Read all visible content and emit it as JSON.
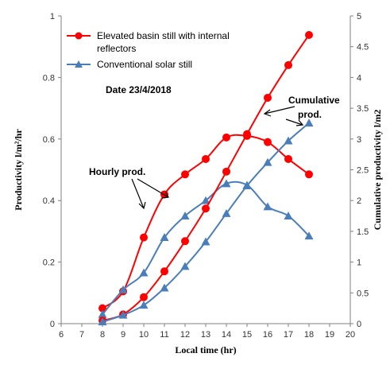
{
  "chart_data": {
    "type": "line",
    "xlabel": "Local time (hr)",
    "ylabel_left": "Productivity l/m²/hr",
    "ylabel_right": "Cumulative productivity l/m2",
    "xlim": [
      6,
      20
    ],
    "ylim_left": [
      0,
      1
    ],
    "ylim_right": [
      0,
      5
    ],
    "x_ticks": [
      "6",
      "7",
      "8",
      "9",
      "10",
      "11",
      "12",
      "13",
      "14",
      "15",
      "16",
      "17",
      "18",
      "19",
      "20"
    ],
    "y_left_ticks": [
      "0",
      "0.2",
      "0.4",
      "0.6",
      "0.8",
      "1"
    ],
    "y_right_ticks": [
      "0",
      "0.5",
      "1",
      "1.5",
      "2",
      "2.5",
      "3",
      "3.5",
      "4",
      "4.5",
      "5"
    ],
    "grid": false,
    "legend_placement": "top-left",
    "legend": [
      {
        "line1": "Elevated basin still with internal",
        "line2": "reflectors",
        "color": "#ff0000",
        "marker": "circle"
      },
      {
        "line1": "Conventional solar still",
        "line2": "",
        "color": "#4a7ebb",
        "marker": "triangle"
      }
    ],
    "annotations": {
      "date": "Date 23/4/2018",
      "hourly": "Hourly prod.",
      "cumulative_line1": "Cumulative",
      "cumulative_line2": "prod."
    },
    "series": [
      {
        "key": "elev_hourly",
        "axis": "left",
        "color": "#ff0000",
        "marker": "circle",
        "x": [
          8,
          9,
          10,
          11,
          12,
          13,
          14,
          15,
          16,
          17,
          18
        ],
        "y": [
          0.05,
          0.105,
          0.28,
          0.42,
          0.485,
          0.535,
          0.605,
          0.61,
          0.59,
          0.535,
          0.485
        ]
      },
      {
        "key": "conv_hourly",
        "axis": "left",
        "color": "#4a7ebb",
        "marker": "triangle",
        "x": [
          8,
          9,
          10,
          11,
          12,
          13,
          14,
          15,
          16,
          17,
          18
        ],
        "y": [
          0.03,
          0.11,
          0.165,
          0.28,
          0.35,
          0.4,
          0.455,
          0.45,
          0.38,
          0.35,
          0.285
        ]
      },
      {
        "key": "elev_cumulative",
        "axis": "right",
        "color": "#ff0000",
        "marker": "circle",
        "x": [
          8,
          9,
          10,
          11,
          12,
          13,
          14,
          15,
          16,
          17,
          18
        ],
        "y": [
          0.05,
          0.15,
          0.43,
          0.85,
          1.34,
          1.87,
          2.47,
          3.08,
          3.67,
          4.2,
          4.69
        ]
      },
      {
        "key": "conv_cumulative",
        "axis": "right",
        "color": "#4a7ebb",
        "marker": "triangle",
        "x": [
          8,
          9,
          10,
          11,
          12,
          13,
          14,
          15,
          16,
          17,
          18
        ],
        "y": [
          0.03,
          0.14,
          0.3,
          0.58,
          0.93,
          1.33,
          1.79,
          2.24,
          2.62,
          2.97,
          3.26
        ]
      }
    ]
  }
}
